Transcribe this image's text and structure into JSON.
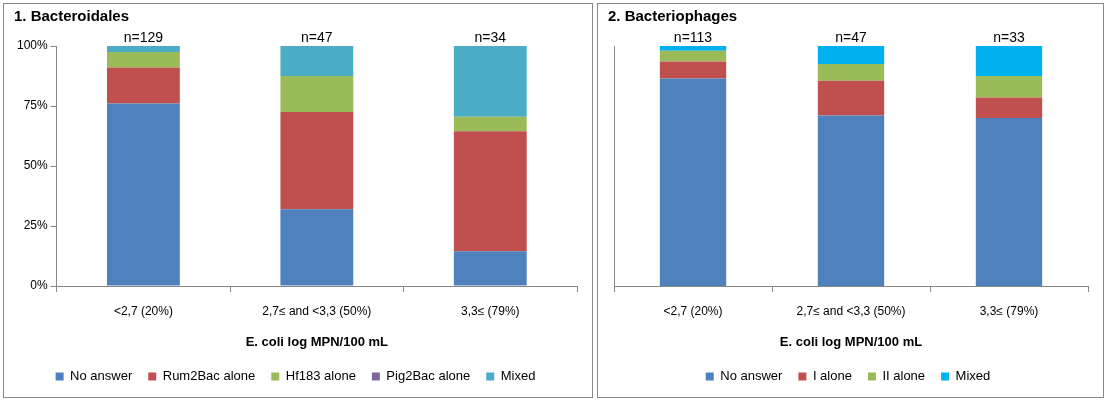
{
  "chart_data": [
    {
      "type": "bar",
      "title": "1. Bacteroidales",
      "xlabel": "E. coli log MPN/100 mL",
      "categories": [
        "<2,7 (20%)",
        "2,7≤ and <3,3 (50%)",
        "3,3≤ (79%)"
      ],
      "stacked": true,
      "series": [
        {
          "name": "No answer",
          "color": "#4f81bd",
          "values": [
            76,
            32,
            14.5
          ]
        },
        {
          "name": "Rum2Bac alone",
          "color": "#c0504d",
          "values": [
            15,
            40.5,
            50
          ]
        },
        {
          "name": "Hf183 alone",
          "color": "#9bbb59",
          "values": [
            6.5,
            15,
            6
          ]
        },
        {
          "name": "Pig2Bac alone",
          "color": "#8064a2",
          "values": [
            0,
            0,
            0
          ]
        },
        {
          "name": "Mixed",
          "color": "#4bacc6",
          "values": [
            2.5,
            12.5,
            29.5
          ]
        }
      ],
      "ylim": [
        0,
        100
      ],
      "yticks": [
        {
          "value": 0,
          "label": "0%"
        },
        {
          "value": 25,
          "label": "25%"
        },
        {
          "value": 50,
          "label": "50%"
        },
        {
          "value": 75,
          "label": "75%"
        },
        {
          "value": 100,
          "label": "100%"
        }
      ],
      "annotations": [
        {
          "text": "n=129",
          "x": "<2,7 (20%)",
          "y": 100
        },
        {
          "text": "n=47",
          "x": "2,7≤ and <3,3 (50%)",
          "y": 100
        },
        {
          "text": "n=34",
          "x": "3,3≤ (79%)",
          "y": 100
        }
      ],
      "grid": false,
      "legend": "bottom"
    },
    {
      "type": "bar",
      "title": "2. Bacteriophages",
      "xlabel": "E. coli log MPN/100 mL",
      "categories": [
        "<2,7 (20%)",
        "2,7≤ and <3,3 (50%)",
        "3,3≤ (79%)"
      ],
      "stacked": true,
      "series": [
        {
          "name": "No answer",
          "color": "#4f81bd",
          "values": [
            86.5,
            71,
            70
          ]
        },
        {
          "name": "I alone",
          "color": "#c0504d",
          "values": [
            7,
            14.5,
            8.5
          ]
        },
        {
          "name": "II alone",
          "color": "#9bbb59",
          "values": [
            4.5,
            7,
            9
          ]
        },
        {
          "name": "Mixed",
          "color": "#00b0f0",
          "values": [
            2,
            7.5,
            12.5
          ]
        }
      ],
      "ylim": [
        0,
        100
      ],
      "tick_labels": "x",
      "annotations": [
        {
          "text": "n=113",
          "x": "<2,7 (20%)",
          "y": 100
        },
        {
          "text": "n=47",
          "x": "2,7≤ and <3,3 (50%)",
          "y": 100
        },
        {
          "text": "n=33",
          "x": "3,3≤ (79%)",
          "y": 100
        }
      ],
      "grid": false,
      "legend": "bottom"
    }
  ]
}
